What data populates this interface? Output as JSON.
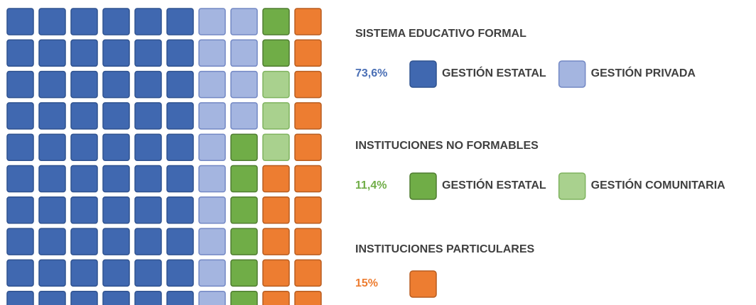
{
  "chart_data": {
    "type": "waffle",
    "groups": [
      {
        "title": "SISTEMA EDUCATIVO FORMAL",
        "value_label": "73,6%",
        "color": "#4a6fb5",
        "items": [
          {
            "name": "GESTIÓN ESTATAL",
            "color": "#4068b0",
            "stroke": "#2f528f",
            "count": 60
          },
          {
            "name": "GESTIÓN PRIVADA",
            "color": "#a4b5e0",
            "stroke": "#7388c4",
            "count": 14
          }
        ]
      },
      {
        "title": "INSTITUCIONES NO FORMABLES",
        "value_label": "11,4%",
        "color": "#70ad47",
        "items": [
          {
            "name": "GESTIÓN ESTATAL",
            "color": "#70ad47",
            "stroke": "#4f7d30",
            "count": 8
          },
          {
            "name": "GESTIÓN COMUNITARIA",
            "color": "#a9d18e",
            "stroke": "#7fb35f",
            "count": 3
          }
        ]
      },
      {
        "title": "INSTITUCIONES PARTICULARES",
        "value_label": "15%",
        "color": "#ed7d31",
        "items": [
          {
            "color": "#ed7d31",
            "stroke": "#b85d20",
            "count": 15
          }
        ]
      }
    ]
  }
}
